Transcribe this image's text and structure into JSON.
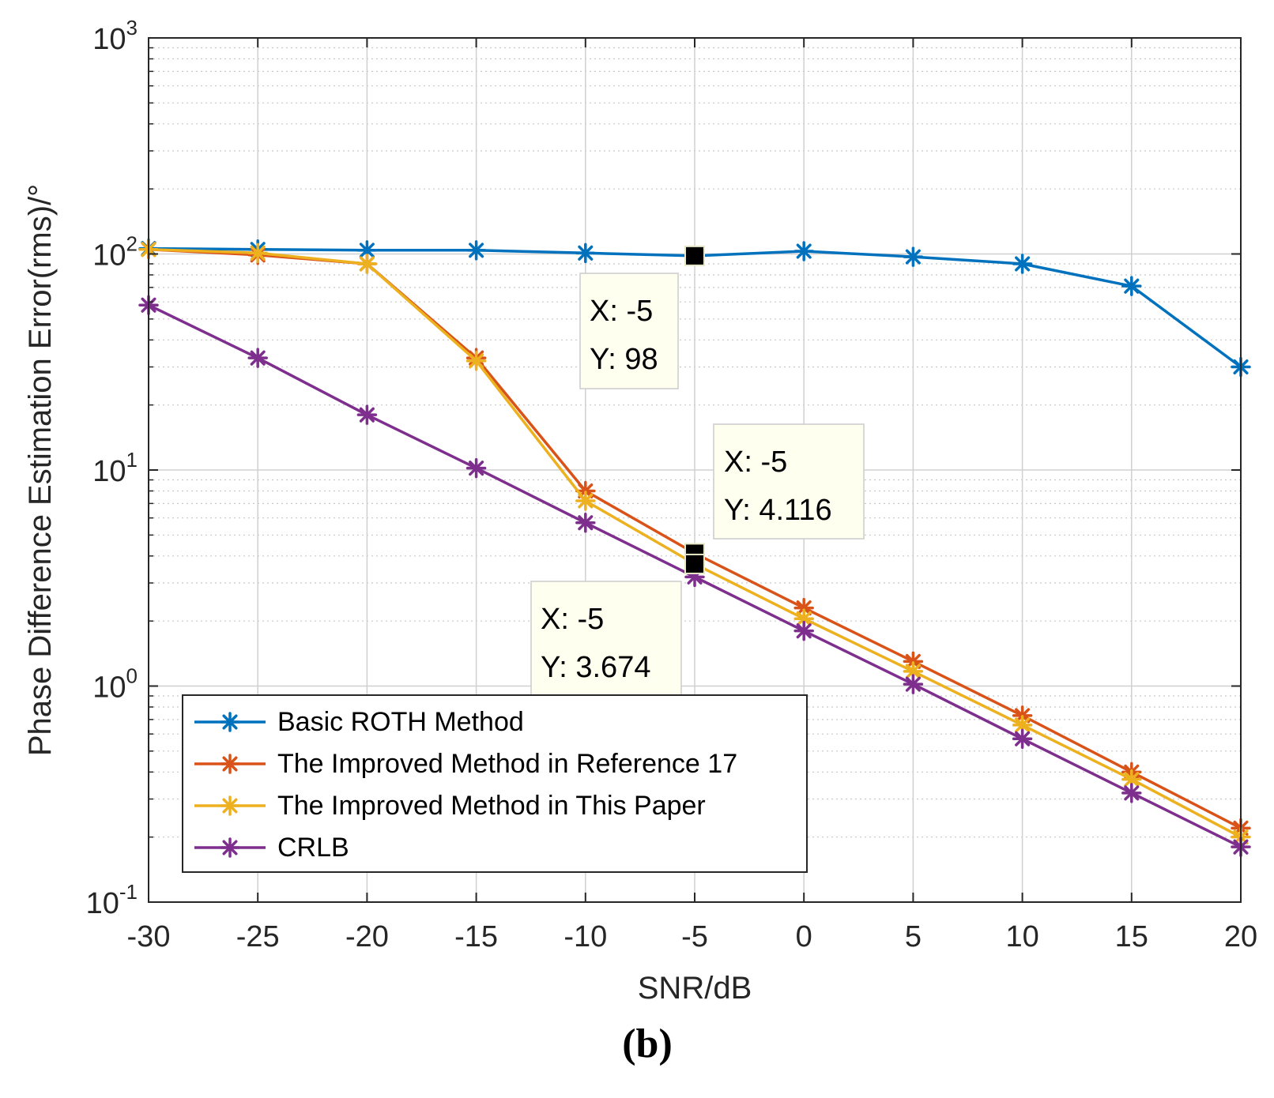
{
  "chart_data": {
    "type": "line",
    "xscale": "linear",
    "yscale": "log",
    "xlabel": "SNR/dB",
    "ylabel": "Phase Difference Estimation Error(rms)/°",
    "xlim": [
      -30,
      20
    ],
    "ylim": [
      0.1,
      1000
    ],
    "grid": true,
    "minor_grid": true,
    "xticks": [
      "-30",
      "-25",
      "-20",
      "-15",
      "-10",
      "-5",
      "0",
      "5",
      "10",
      "15",
      "20"
    ],
    "yticks": [
      {
        "base": "10",
        "exp": "-1",
        "value": 0.1
      },
      {
        "base": "10",
        "exp": "0",
        "value": 1
      },
      {
        "base": "10",
        "exp": "1",
        "value": 10
      },
      {
        "base": "10",
        "exp": "2",
        "value": 100
      },
      {
        "base": "10",
        "exp": "3",
        "value": 1000
      }
    ],
    "x": [
      -30,
      -25,
      -20,
      -15,
      -10,
      -5,
      0,
      5,
      10,
      15,
      20
    ],
    "series": [
      {
        "name": "Basic ROTH Method",
        "color": "#0072BD",
        "values": [
          106,
          105,
          104,
          104,
          101,
          98,
          103,
          97,
          90,
          71,
          30
        ]
      },
      {
        "name": "The Improved Method in Reference 17",
        "color": "#D95319",
        "values": [
          105,
          99,
          90,
          33,
          8.0,
          4.116,
          2.3,
          1.3,
          0.73,
          0.4,
          0.22
        ]
      },
      {
        "name": "The Improved Method in This Paper",
        "color": "#EDB120",
        "values": [
          105,
          101,
          90,
          32,
          7.2,
          3.674,
          2.05,
          1.17,
          0.66,
          0.37,
          0.2
        ]
      },
      {
        "name": "CRLB",
        "color": "#7E2F8E",
        "values": [
          58,
          33,
          18,
          10.2,
          5.7,
          3.2,
          1.8,
          1.02,
          0.57,
          0.32,
          0.18
        ]
      }
    ],
    "datatips": [
      {
        "x": -5,
        "y": 98,
        "x_text": "X: -5",
        "y_text": "Y: 98"
      },
      {
        "x": -5,
        "y": 4.116,
        "x_text": "X: -5",
        "y_text": "Y: 4.116"
      },
      {
        "x": -5,
        "y": 3.674,
        "x_text": "X: -5",
        "y_text": "Y: 3.674"
      }
    ],
    "legend": {
      "location": "bottom-left"
    },
    "panel_label": "(b)"
  }
}
